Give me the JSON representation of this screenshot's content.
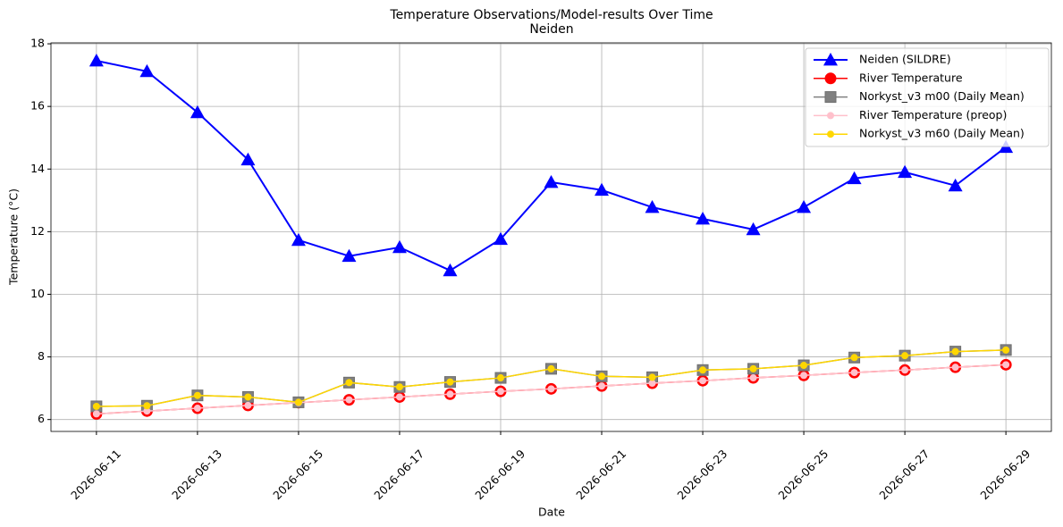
{
  "chart_data": {
    "type": "line",
    "title": "Temperature Observations/Model-results Over Time",
    "subtitle": "Neiden",
    "x_label": "Date",
    "y_label": "Temperature (°C)",
    "x": [
      "2026-06-11",
      "2026-06-12",
      "2026-06-13",
      "2026-06-14",
      "2026-06-15",
      "2026-06-16",
      "2026-06-17",
      "2026-06-18",
      "2026-06-19",
      "2026-06-20",
      "2026-06-21",
      "2026-06-22",
      "2026-06-23",
      "2026-06-24",
      "2026-06-25",
      "2026-06-26",
      "2026-06-27",
      "2026-06-28",
      "2026-06-29"
    ],
    "xlim": [
      "2026-06-10T02:24",
      "2026-06-29T21:36"
    ],
    "xticks": [
      "2026-06-11",
      "2026-06-13",
      "2026-06-15",
      "2026-06-17",
      "2026-06-19",
      "2026-06-21",
      "2026-06-23",
      "2026-06-25",
      "2026-06-27",
      "2026-06-29"
    ],
    "ylim": [
      5.62,
      18.03
    ],
    "yticks": [
      6,
      8,
      10,
      12,
      14,
      16,
      18
    ],
    "grid": true,
    "legend": "upper right",
    "series": [
      {
        "name": "Neiden (SILDRE)",
        "color": "#0000ff",
        "marker": "triangle",
        "values": [
          17.46,
          17.12,
          15.81,
          14.3,
          11.73,
          11.22,
          11.5,
          10.76,
          11.76,
          13.58,
          13.33,
          12.78,
          12.41,
          12.07,
          12.78,
          13.7,
          13.9,
          13.47,
          14.7
        ]
      },
      {
        "name": "River Temperature",
        "color": "#ff0000",
        "marker": "circle",
        "values": [
          6.18,
          6.27,
          6.36,
          6.45,
          6.54,
          6.63,
          6.72,
          6.81,
          6.9,
          6.98,
          7.07,
          7.16,
          7.24,
          7.33,
          7.41,
          7.5,
          7.58,
          7.67,
          7.75
        ]
      },
      {
        "name": "Norkyst_v3 m00 (Daily Mean)",
        "color": "#808080",
        "marker": "square",
        "values": [
          6.42,
          6.44,
          6.77,
          6.72,
          6.55,
          7.18,
          7.04,
          7.2,
          7.33,
          7.62,
          7.38,
          7.35,
          7.58,
          7.62,
          7.73,
          7.98,
          8.04,
          8.17,
          8.22
        ]
      },
      {
        "name": "River Temperature (preop)",
        "color": "#ffc0cb",
        "marker": "small-circle",
        "values": [
          6.18,
          6.27,
          6.36,
          6.45,
          6.54,
          6.63,
          6.72,
          6.81,
          6.9,
          6.98,
          7.07,
          7.16,
          7.24,
          7.33,
          7.41,
          7.5,
          7.58,
          7.67,
          7.75
        ]
      },
      {
        "name": "Norkyst_v3 m60 (Daily Mean)",
        "color": "#ffd700",
        "marker": "small-circle",
        "values": [
          6.42,
          6.44,
          6.77,
          6.72,
          6.55,
          7.18,
          7.04,
          7.2,
          7.33,
          7.62,
          7.38,
          7.35,
          7.58,
          7.62,
          7.73,
          7.98,
          8.04,
          8.17,
          8.22
        ]
      }
    ]
  }
}
